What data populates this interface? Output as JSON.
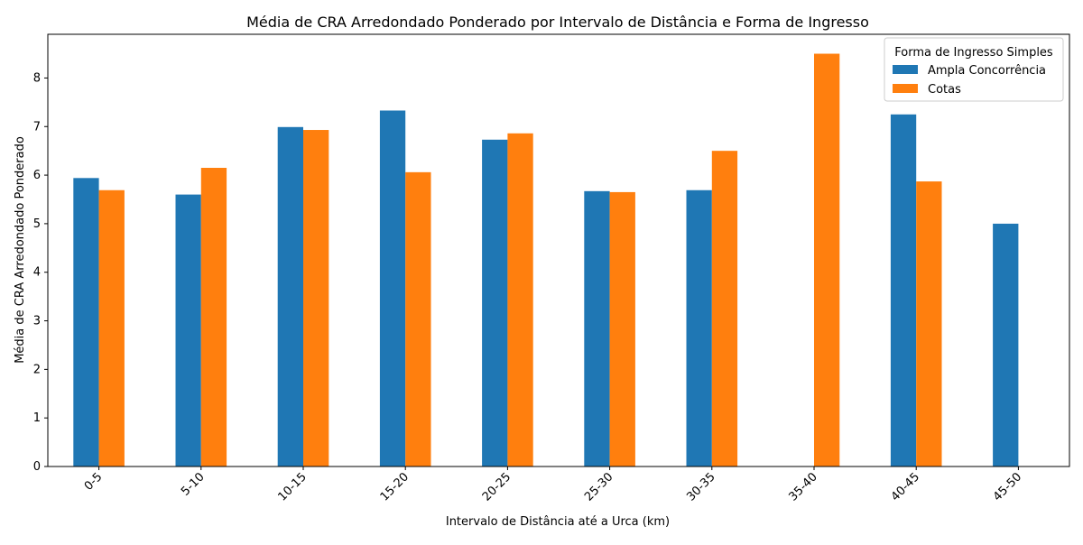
{
  "chart_data": {
    "type": "bar",
    "title": "Média de CRA Arredondado Ponderado por Intervalo de Distância e Forma de Ingresso",
    "xlabel": "Intervalo de Distância até a Urca (km)",
    "ylabel": "Média de CRA Arredondado Ponderado",
    "categories": [
      "0-5",
      "5-10",
      "10-15",
      "15-20",
      "20-25",
      "25-30",
      "30-35",
      "35-40",
      "40-45",
      "45-50"
    ],
    "series": [
      {
        "name": "Ampla Concorrência",
        "color": "#1f77b4",
        "values": [
          5.94,
          5.6,
          6.99,
          7.33,
          6.73,
          5.67,
          5.69,
          null,
          7.25,
          5.0
        ]
      },
      {
        "name": "Cotas",
        "color": "#ff7f0e",
        "values": [
          5.69,
          6.15,
          6.93,
          6.06,
          6.86,
          5.65,
          6.5,
          8.5,
          5.87,
          null
        ]
      }
    ],
    "ylim": [
      0,
      8.9
    ],
    "yticks": [
      0,
      1,
      2,
      3,
      4,
      5,
      6,
      7,
      8
    ],
    "grid": false,
    "legend": {
      "title": "Forma de Ingresso Simples",
      "placement": "top-right"
    },
    "x_tick_rotation_deg": 45
  }
}
